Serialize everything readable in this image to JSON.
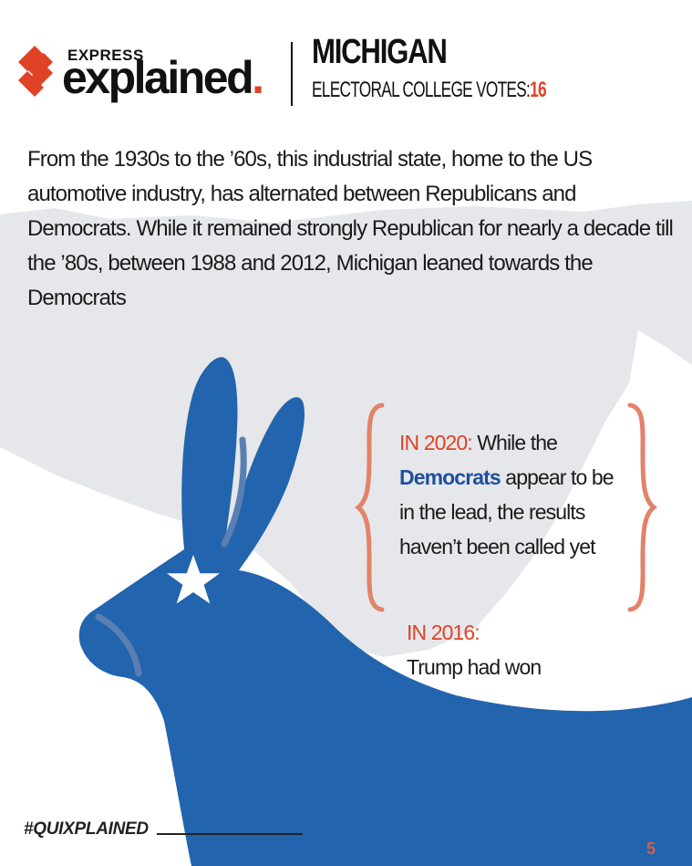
{
  "brand": {
    "express": "EXPRESS",
    "explained": "explained",
    "dot": "."
  },
  "state": {
    "name": "MICHIGAN",
    "votes_label": "ELECTORAL COLLEGE VOTES:",
    "votes_value": "16"
  },
  "intro": "From the 1930s to the ’60s, this industrial state, home to the US automotive industry, has alternated between Republicans and Democrats. While it remained strongly Republican for nearly a decade till the ’80s, between 1988 and 2012, Michigan leaned towards the Democrats",
  "result_2020": {
    "label": "IN 2020:",
    "text_a": "While the",
    "party": "Democrats",
    "text_b": "appear to be in the lead, the results haven’t been called yet"
  },
  "result_2016": {
    "label": "IN 2016:",
    "text": "Trump had won"
  },
  "footer": {
    "hashtag": "#QUIXPLAINED",
    "page": "5"
  },
  "colors": {
    "accent_red": "#e04226",
    "donkey_blue": "#2264ad",
    "democrat_blue": "#1f4f9e",
    "map_grey": "#e6e7ea",
    "brace_salmon": "#e2826a"
  },
  "icons": [
    "express-logo-icon",
    "democrat-donkey-icon",
    "star-icon",
    "michigan-map-icon"
  ]
}
